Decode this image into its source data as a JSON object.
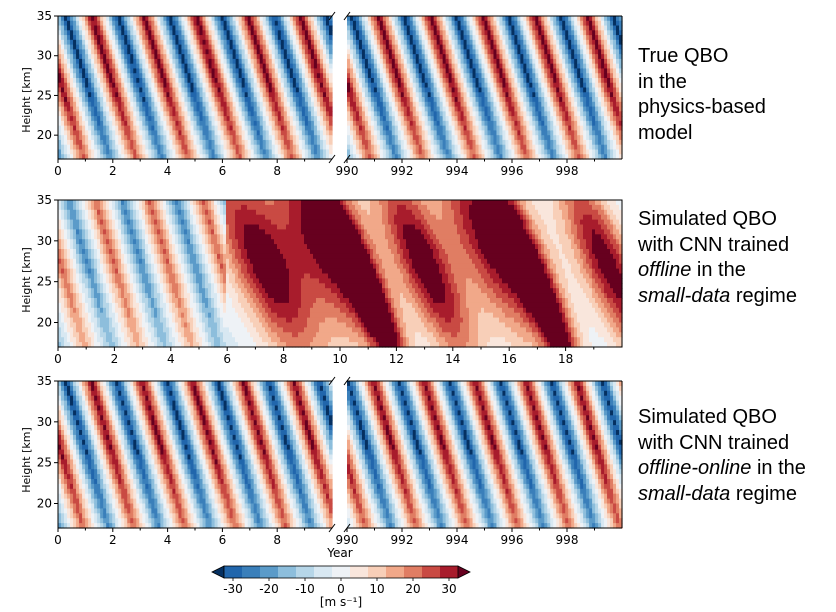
{
  "panels": [
    {
      "id": "true-qbo",
      "caption": [
        [
          {
            "t": "True QBO"
          }
        ],
        [
          {
            "t": "in the"
          }
        ],
        [
          {
            "t": "physics-based"
          }
        ],
        [
          {
            "t": "model"
          }
        ]
      ]
    },
    {
      "id": "cnn-offline",
      "caption": [
        [
          {
            "t": "Simulated QBO"
          }
        ],
        [
          {
            "t": "with CNN trained"
          }
        ],
        [
          {
            "t": "offline",
            "i": true
          },
          {
            "t": " in the"
          }
        ],
        [
          {
            "t": "small-data",
            "i": true
          },
          {
            "t": " regime"
          }
        ]
      ]
    },
    {
      "id": "cnn-offline-online",
      "caption": [
        [
          {
            "t": "Simulated QBO"
          }
        ],
        [
          {
            "t": "with CNN trained"
          }
        ],
        [
          {
            "t": "offline-online",
            "i": true
          },
          {
            "t": " in the"
          }
        ],
        [
          {
            "t": "small-data",
            "i": true
          },
          {
            "t": " regime"
          }
        ]
      ]
    }
  ],
  "chart_data": [
    {
      "type": "heatmap",
      "panel": "true-qbo",
      "ylabel": "Height [km]",
      "xlabel": "",
      "ylim": [
        17,
        35
      ],
      "yticks": [
        20,
        25,
        30,
        35
      ],
      "broken_x_axis": true,
      "segments": [
        {
          "xlim": [
            0,
            10
          ],
          "xticks": [
            0,
            2,
            4,
            6,
            8
          ],
          "xticklabels": [
            "0",
            "2",
            "4",
            "6",
            "8"
          ]
        },
        {
          "xlim": [
            990,
            1000
          ],
          "xticks": [
            990,
            992,
            994,
            996,
            998
          ],
          "xticklabels": [
            "990",
            "992",
            "994",
            "996",
            "998"
          ]
        }
      ],
      "field": "zonal wind, downward-propagating alternating easterly/westerly regimes",
      "approx_period_years": 1.9,
      "approx_max_amplitude": 35
    },
    {
      "type": "heatmap",
      "panel": "cnn-offline",
      "ylabel": "Height [km]",
      "xlabel": "",
      "ylim": [
        17,
        35
      ],
      "yticks": [
        20,
        25,
        30,
        35
      ],
      "broken_x_axis": false,
      "segments": [
        {
          "xlim": [
            0,
            20
          ],
          "xticks": [
            0,
            2,
            4,
            6,
            8,
            10,
            12,
            14,
            16,
            18
          ],
          "xticklabels": [
            "0",
            "2",
            "4",
            "6",
            "8",
            "10",
            "12",
            "14",
            "16",
            "18"
          ]
        }
      ],
      "field": "zonal wind, irregular QBO with strong westerly bursts after year 6",
      "approx_max_amplitude": 35
    },
    {
      "type": "heatmap",
      "panel": "cnn-offline-online",
      "ylabel": "Height [km]",
      "xlabel": "Year",
      "ylim": [
        17,
        35
      ],
      "yticks": [
        20,
        25,
        30,
        35
      ],
      "broken_x_axis": true,
      "segments": [
        {
          "xlim": [
            0,
            10
          ],
          "xticks": [
            0,
            2,
            4,
            6,
            8
          ],
          "xticklabels": [
            "0",
            "2",
            "4",
            "6",
            "8"
          ]
        },
        {
          "xlim": [
            990,
            1000
          ],
          "xticks": [
            990,
            992,
            994,
            996,
            998
          ],
          "xticklabels": [
            "990",
            "992",
            "994",
            "996",
            "998"
          ]
        }
      ],
      "field": "zonal wind, regular downward-propagating alternating regimes",
      "approx_period_years": 1.85,
      "approx_max_amplitude": 35
    }
  ],
  "colorbar": {
    "label": "[m s⁻¹]",
    "ticks": [
      "-30",
      "-20",
      "-10",
      "0",
      "10",
      "20",
      "30"
    ],
    "tick_values": [
      -30,
      -20,
      -10,
      0,
      10,
      20,
      30
    ],
    "range": [
      -35,
      35
    ],
    "extend": "both",
    "colors": [
      "#053061",
      "#2166ac",
      "#3a7fba",
      "#5b9bc9",
      "#8dbedc",
      "#b6d6e8",
      "#d8e8f2",
      "#eef2f6",
      "#f9e6dc",
      "#f8cfb8",
      "#f1a889",
      "#e07d63",
      "#c94a43",
      "#a81c2c",
      "#67001f"
    ]
  }
}
